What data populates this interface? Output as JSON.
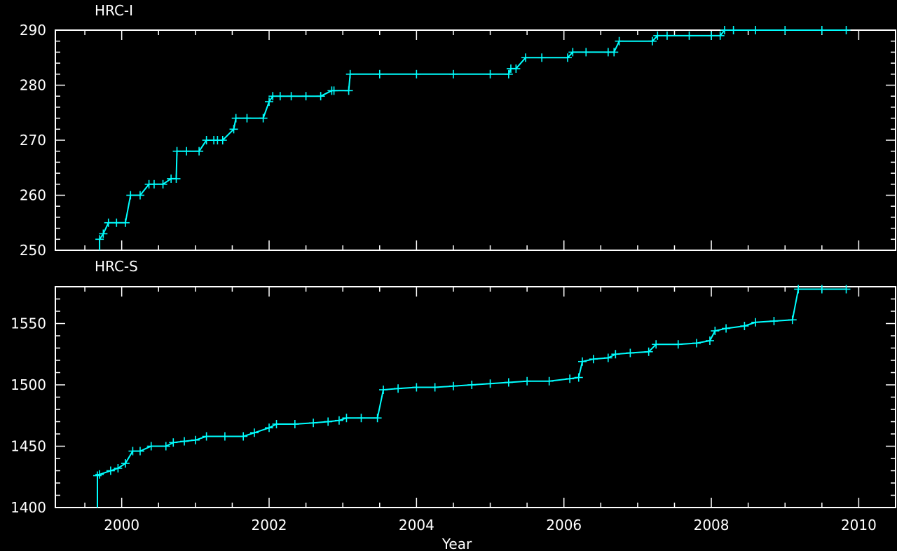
{
  "chart_data": {
    "type": "line",
    "colors": {
      "background": "#000000",
      "axes": "#ffffff",
      "series": "#00ffff"
    },
    "marker": "plus",
    "xlabel": "Year",
    "xlim": [
      1999.1,
      2010.5
    ],
    "xticks": [
      2000,
      2002,
      2004,
      2006,
      2008,
      2010
    ],
    "xtick_labels": [
      "2000",
      "2002",
      "2004",
      "2006",
      "2008",
      "2010"
    ],
    "panels": [
      {
        "title": "HRC-I",
        "ylim": [
          250,
          290
        ],
        "yticks": [
          250,
          260,
          270,
          280,
          290
        ],
        "ytick_labels": [
          "250",
          "260",
          "270",
          "280",
          "290"
        ],
        "x": [
          1999.7,
          1999.75,
          1999.82,
          1999.93,
          2000.05,
          2000.12,
          2000.25,
          2000.37,
          2000.44,
          2000.56,
          2000.67,
          2000.74,
          2000.75,
          2000.88,
          2001.05,
          2001.15,
          2001.25,
          2001.3,
          2001.37,
          2001.52,
          2001.55,
          2001.7,
          2001.92,
          2002.0,
          2002.05,
          2002.15,
          2002.3,
          2002.5,
          2002.7,
          2002.85,
          2002.88,
          2003.08,
          2003.1,
          2003.5,
          2004.0,
          2004.5,
          2005.0,
          2005.25,
          2005.28,
          2005.35,
          2005.48,
          2005.7,
          2006.05,
          2006.12,
          2006.3,
          2006.6,
          2006.68,
          2006.75,
          2007.2,
          2007.27,
          2007.4,
          2007.7,
          2008.0,
          2008.12,
          2008.18,
          2008.3,
          2008.6,
          2009.0,
          2009.5,
          2009.83
        ],
        "y": [
          252,
          253,
          255,
          255,
          255,
          260,
          260,
          262,
          262,
          262,
          263,
          263,
          268,
          268,
          268,
          270,
          270,
          270,
          270,
          272,
          274,
          274,
          274,
          277,
          278,
          278,
          278,
          278,
          278,
          279,
          279,
          279,
          282,
          282,
          282,
          282,
          282,
          282,
          283,
          283,
          285,
          285,
          285,
          286,
          286,
          286,
          286,
          288,
          288,
          289,
          289,
          289,
          289,
          289,
          290,
          290,
          290,
          290,
          290,
          290
        ]
      },
      {
        "title": "HRC-S",
        "ylim": [
          1400,
          1580
        ],
        "yticks": [
          1400,
          1450,
          1500,
          1550
        ],
        "ytick_labels": [
          "1400",
          "1450",
          "1500",
          "1550"
        ],
        "x": [
          1999.67,
          1999.7,
          1999.85,
          1999.95,
          2000.05,
          2000.15,
          2000.25,
          2000.4,
          2000.6,
          2000.7,
          2000.85,
          2001.0,
          2001.15,
          2001.4,
          2001.65,
          2001.8,
          2002.0,
          2002.1,
          2002.35,
          2002.6,
          2002.8,
          2002.95,
          2003.05,
          2003.25,
          2003.47,
          2003.55,
          2003.75,
          2004.0,
          2004.25,
          2004.5,
          2004.75,
          2005.0,
          2005.25,
          2005.5,
          2005.8,
          2006.08,
          2006.2,
          2006.25,
          2006.4,
          2006.6,
          2006.7,
          2006.9,
          2007.15,
          2007.25,
          2007.55,
          2007.8,
          2007.98,
          2008.05,
          2008.2,
          2008.45,
          2008.6,
          2008.85,
          2009.1,
          2009.18,
          2009.5,
          2009.83
        ],
        "y": [
          1426,
          1427,
          1430,
          1432,
          1436,
          1446,
          1446,
          1450,
          1450,
          1453,
          1454,
          1455,
          1458,
          1458,
          1458,
          1461,
          1465,
          1468,
          1468,
          1469,
          1470,
          1471,
          1473,
          1473,
          1473,
          1496,
          1497,
          1498,
          1498,
          1499,
          1500,
          1501,
          1502,
          1503,
          1503,
          1505,
          1506,
          1519,
          1521,
          1522,
          1525,
          1526,
          1527,
          1533,
          1533,
          1534,
          1536,
          1544,
          1546,
          1548,
          1551,
          1552,
          1553,
          1578,
          1578,
          1578
        ]
      }
    ]
  }
}
